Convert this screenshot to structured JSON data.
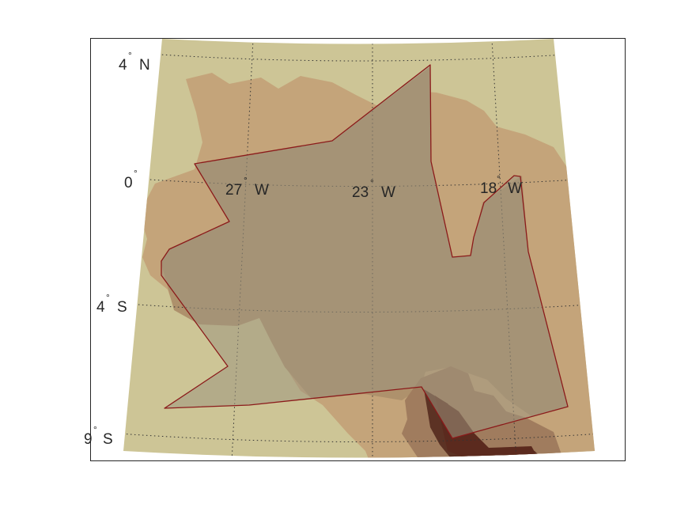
{
  "map": {
    "colors": {
      "background": "#cdc596",
      "elevation_1": "#c4a47a",
      "elevation_2": "#ae916c",
      "elevation_3": "#a07c5e",
      "elevation_4": "#5c3224",
      "elevation_5": "#5b2a1e",
      "region_fill": "#9e9680",
      "region_edge": "#8b1a1a",
      "frame": "#262626"
    },
    "latitude_labels": [
      {
        "id": "4n",
        "value": "4",
        "hemisphere": "N"
      },
      {
        "id": "0",
        "value": "0",
        "hemisphere": ""
      },
      {
        "id": "4s",
        "value": "4",
        "hemisphere": "S"
      },
      {
        "id": "9s",
        "value": "9",
        "hemisphere": "S"
      }
    ],
    "longitude_labels": [
      {
        "id": "27w",
        "value": "27",
        "hemisphere": "W"
      },
      {
        "id": "23w",
        "value": "23",
        "hemisphere": "W"
      },
      {
        "id": "18w",
        "value": "18",
        "hemisphere": "W"
      }
    ],
    "degree_symbol": "°"
  }
}
